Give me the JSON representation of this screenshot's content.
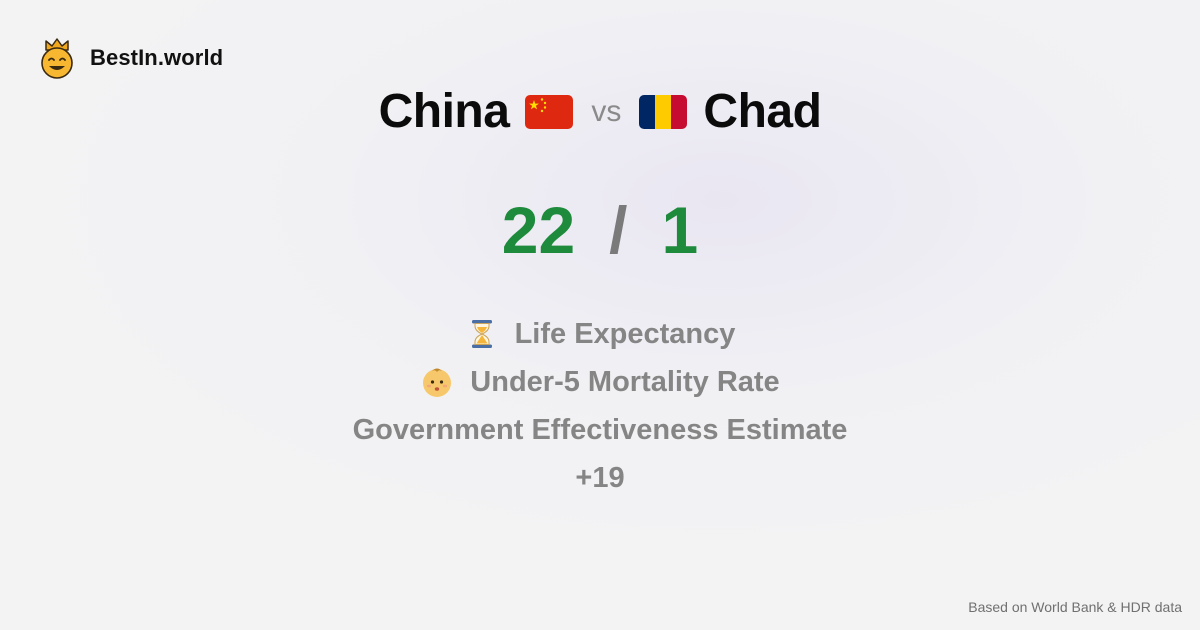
{
  "brand": {
    "name": "BestIn.world",
    "icon": "crown-smiley-icon"
  },
  "comparison": {
    "left": {
      "name": "China",
      "flag": "china-flag-icon"
    },
    "separator": "vs",
    "right": {
      "name": "Chad",
      "flag": "chad-flag-icon"
    }
  },
  "score": {
    "left": "22",
    "separator": "/",
    "right": "1"
  },
  "metrics": [
    {
      "icon": "hourglass-icon",
      "label": "Life Expectancy"
    },
    {
      "icon": "baby-icon",
      "label": "Under-5 Mortality Rate"
    },
    {
      "icon": "",
      "label": "Government Effectiveness Estimate"
    }
  ],
  "more_count": "+19",
  "source": "Based on World Bank & HDR data",
  "colors": {
    "score_green": "#1d8a3c",
    "muted_text": "#858585"
  }
}
